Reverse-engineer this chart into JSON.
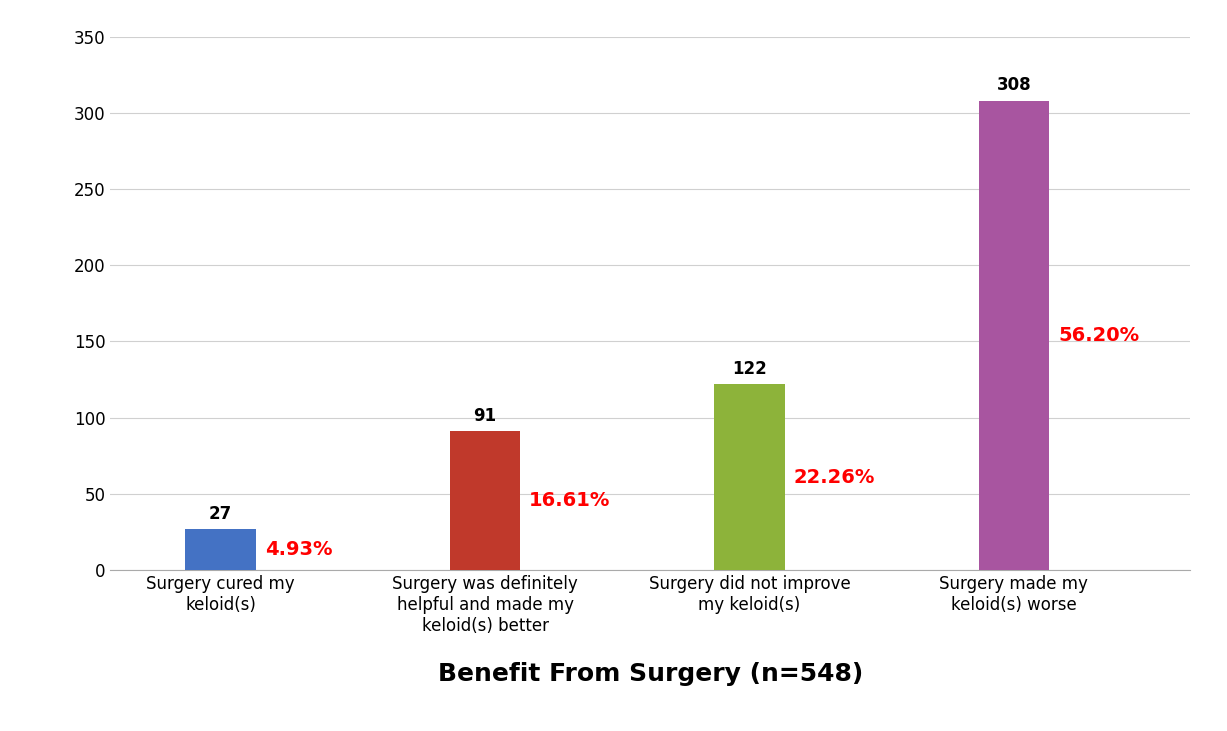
{
  "categories": [
    "Surgery cured my\nkeloid(s)",
    "Surgery was definitely\nhelpful and made my\nkeloid(s) better",
    "Surgery did not improve\nmy keloid(s)",
    "Surgery made my\nkeloid(s) worse"
  ],
  "values": [
    27,
    91,
    122,
    308
  ],
  "percentages": [
    "4.93%",
    "16.61%",
    "22.26%",
    "56.20%"
  ],
  "bar_colors": [
    "#4472C4",
    "#C0392B",
    "#8DB33A",
    "#A855A0"
  ],
  "title": "Benefit From Surgery (n=548)",
  "ylim": [
    0,
    350
  ],
  "yticks": [
    0,
    50,
    100,
    150,
    200,
    250,
    300,
    350
  ],
  "background_color": "#ffffff",
  "grid_color": "#d0d0d0",
  "title_fontsize": 18,
  "value_fontsize": 12,
  "pct_fontsize": 14,
  "tick_fontsize": 12,
  "bar_width": 0.32
}
